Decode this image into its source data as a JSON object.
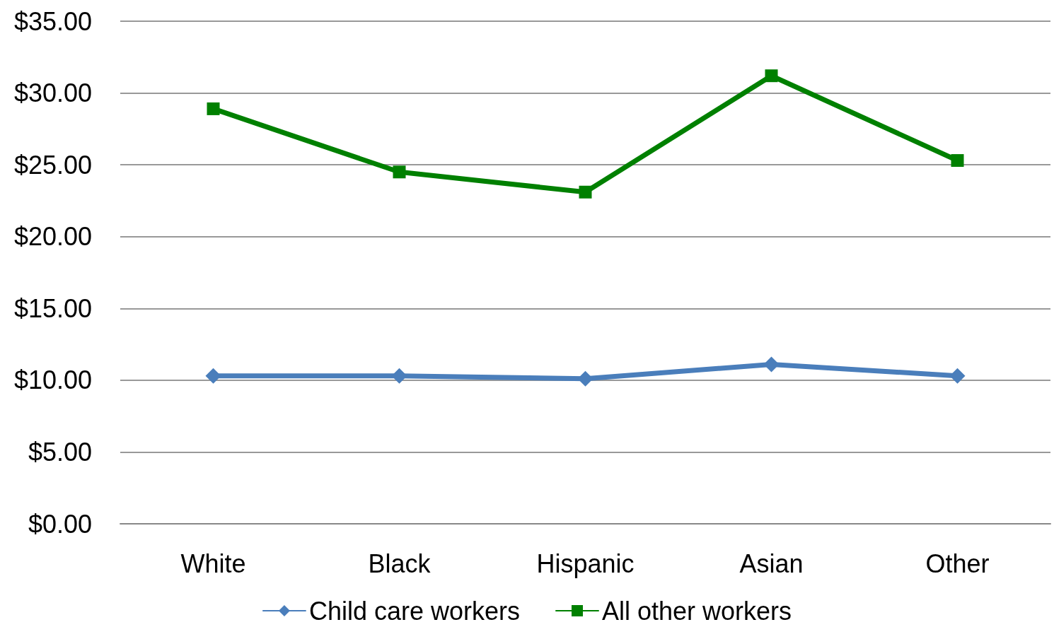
{
  "chart_data": {
    "type": "line",
    "categories": [
      "White",
      "Black",
      "Hispanic",
      "Asian",
      "Other"
    ],
    "series": [
      {
        "name": "Child care workers",
        "color": "#4a7ebb",
        "marker": "diamond",
        "values": [
          10.3,
          10.3,
          10.1,
          11.1,
          10.3
        ]
      },
      {
        "name": "All other workers",
        "color": "#008000",
        "marker": "square",
        "values": [
          28.9,
          24.5,
          23.1,
          31.2,
          25.3
        ]
      }
    ],
    "ylim": [
      0,
      35
    ],
    "yticks": [
      {
        "value": 0,
        "label": "$0.00"
      },
      {
        "value": 5,
        "label": "$5.00"
      },
      {
        "value": 10,
        "label": "$10.00"
      },
      {
        "value": 15,
        "label": "$15.00"
      },
      {
        "value": 20,
        "label": "$20.00"
      },
      {
        "value": 25,
        "label": "$25.00"
      },
      {
        "value": 30,
        "label": "$30.00"
      },
      {
        "value": 35,
        "label": "$35.00"
      }
    ],
    "grid": "y",
    "legend": "bottom",
    "line_style": "solid"
  }
}
